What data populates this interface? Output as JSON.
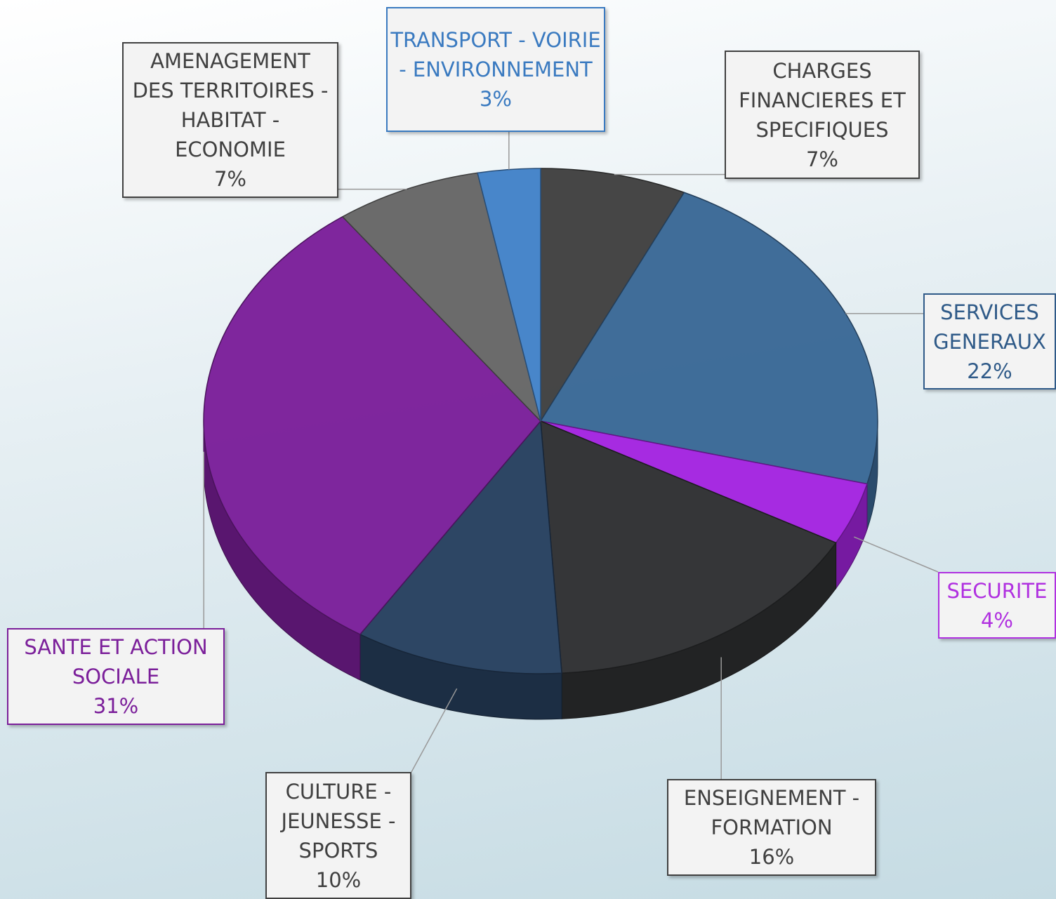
{
  "chart_data": {
    "type": "pie3d",
    "categories": [
      "CHARGES FINANCIERES ET SPECIFIQUES",
      "SERVICES GENERAUX",
      "SECURITE",
      "ENSEIGNEMENT - FORMATION",
      "CULTURE - JEUNESSE - SPORTS",
      "SANTE ET ACTION SOCIALE",
      "AMENAGEMENT DES TERRITOIRES - HABITAT - ECONOMIE",
      "TRANSPORT - VOIRIE - ENVIRONNEMENT"
    ],
    "values": [
      7,
      22,
      4,
      16,
      10,
      31,
      7,
      3
    ],
    "value_labels": [
      "7%",
      "22%",
      "4%",
      "16%",
      "10%",
      "31%",
      "7%",
      "3%"
    ],
    "colors": [
      "#404040",
      "#3a6896",
      "#a424e0",
      "#2f3032",
      "#27405f",
      "#7b1f9a",
      "#666666",
      "#4282c8"
    ],
    "label_colors": [
      "#404040",
      "#2f5a88",
      "#b030e0",
      "#404040",
      "#404040",
      "#7b1f9a",
      "#404040",
      "#3a7ac0"
    ]
  }
}
